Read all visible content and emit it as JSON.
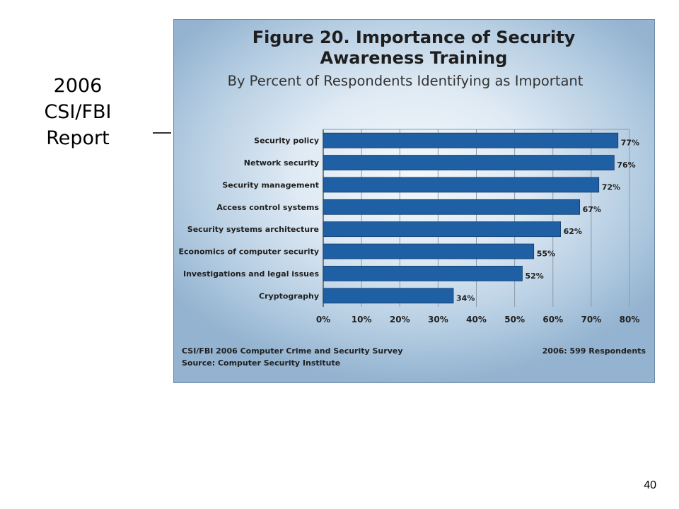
{
  "slide": {
    "label_lines": [
      "2006",
      "CSI/FBI",
      "Report"
    ],
    "page_number": "40"
  },
  "figure": {
    "title_line1": "Figure 20. Importance of Security",
    "title_line2": "Awareness Training",
    "subtitle": "By Percent of Respondents Identifying as Important",
    "source_line1": "CSI/FBI 2006 Computer Crime and Security Survey",
    "source_line2": "Source: Computer Security Institute",
    "respondents": "2006: 599 Respondents"
  },
  "chart_data": {
    "type": "bar",
    "orientation": "horizontal",
    "categories": [
      "Security policy",
      "Network security",
      "Security management",
      "Access control systems",
      "Security systems architecture",
      "Economics of computer security",
      "Investigations and legal issues",
      "Cryptography"
    ],
    "values": [
      77,
      76,
      72,
      67,
      62,
      55,
      52,
      34
    ],
    "value_labels": [
      "77%",
      "76%",
      "72%",
      "67%",
      "62%",
      "55%",
      "52%",
      "34%"
    ],
    "xlim": [
      0,
      80
    ],
    "x_ticks": [
      0,
      10,
      20,
      30,
      40,
      50,
      60,
      70,
      80
    ],
    "x_tick_labels": [
      "0%",
      "10%",
      "20%",
      "30%",
      "40%",
      "50%",
      "60%",
      "70%",
      "80%"
    ],
    "grid": true,
    "bar_color": "#1f5fa3"
  }
}
